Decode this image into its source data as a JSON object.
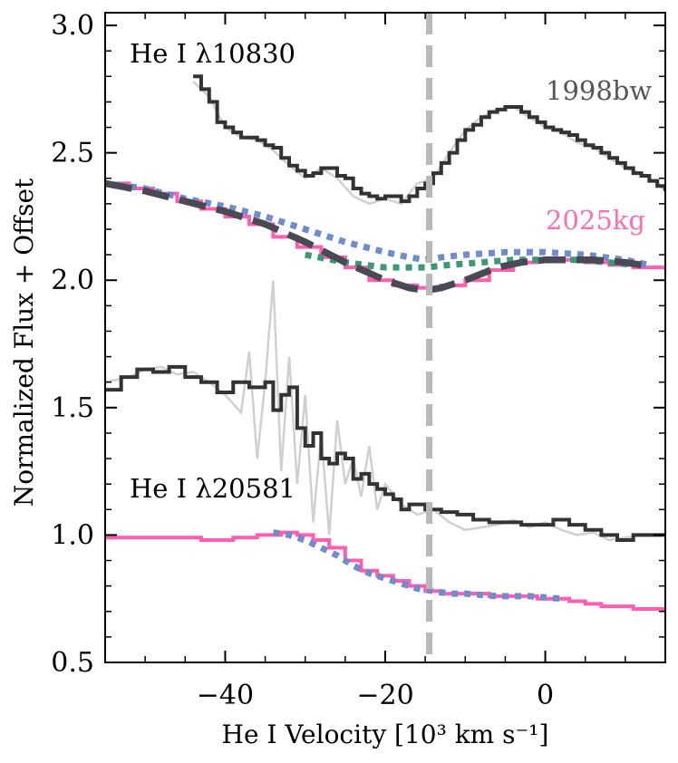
{
  "chart_data": {
    "type": "line",
    "xlabel": "He I Velocity [10³ km s⁻¹]",
    "ylabel": "Normalized Flux + Offset",
    "xlim": [
      -55,
      15
    ],
    "ylim": [
      0.5,
      3.05
    ],
    "x_ticks": [
      -40,
      -20,
      0
    ],
    "x_tick_labels": [
      "−40",
      "−20",
      "0"
    ],
    "y_ticks": [
      0.5,
      1.0,
      1.5,
      2.0,
      2.5,
      3.0
    ],
    "y_tick_labels": [
      "0.5",
      "1.0",
      "1.5",
      "2.0",
      "2.5",
      "3.0"
    ],
    "x_minor_step": 5,
    "y_minor_step": 0.1,
    "vline": {
      "x": -14.5,
      "style": "dashed",
      "color": "#b8b8b8"
    },
    "annotations": [
      {
        "text": "He I λ10830",
        "color": "#000000"
      },
      {
        "text": "1998bw",
        "color": "#555555"
      },
      {
        "text": "2025kg",
        "color": "#ff6eb4"
      },
      {
        "text": "He I λ20581",
        "color": "#000000"
      }
    ],
    "colors": {
      "data": "#333333",
      "raw": "#d0d0d0",
      "model": "#ff5cb2",
      "blue": "#6f8ccc",
      "green": "#3a9a78",
      "dash": "#4a4a55"
    },
    "series": [
      {
        "name": "1998bw λ10830 raw",
        "style": "raw",
        "x": [
          -44,
          -42,
          -40,
          -38,
          -36,
          -34,
          -32,
          -30,
          -28,
          -26,
          -24,
          -22,
          -20,
          -18,
          -16,
          -14,
          -12,
          -10,
          -8,
          -6,
          -4,
          -2,
          0,
          2,
          4,
          6,
          8,
          10,
          12,
          14,
          15
        ],
        "y": [
          2.78,
          2.72,
          2.6,
          2.56,
          2.55,
          2.51,
          2.45,
          2.4,
          2.44,
          2.4,
          2.33,
          2.3,
          2.32,
          2.3,
          2.38,
          2.4,
          2.5,
          2.59,
          2.64,
          2.67,
          2.68,
          2.64,
          2.6,
          2.58,
          2.54,
          2.52,
          2.48,
          2.44,
          2.42,
          2.38,
          2.35
        ]
      },
      {
        "name": "1998bw λ10830",
        "style": "step",
        "x": [
          -44,
          -43,
          -42,
          -41,
          -40,
          -39,
          -38,
          -37,
          -36,
          -35,
          -34,
          -33,
          -32,
          -31,
          -30,
          -29,
          -28,
          -27,
          -26,
          -25,
          -24,
          -23,
          -22,
          -21,
          -20,
          -19,
          -18,
          -17,
          -16,
          -15,
          -14,
          -13,
          -12,
          -11,
          -10,
          -9,
          -8,
          -7,
          -6,
          -5,
          -4,
          -3,
          -2,
          -1,
          0,
          1,
          2,
          3,
          4,
          5,
          6,
          7,
          8,
          9,
          10,
          11,
          12,
          13,
          14,
          15
        ],
        "y": [
          2.8,
          2.75,
          2.7,
          2.62,
          2.6,
          2.58,
          2.56,
          2.56,
          2.55,
          2.53,
          2.52,
          2.48,
          2.45,
          2.43,
          2.41,
          2.42,
          2.44,
          2.44,
          2.41,
          2.4,
          2.36,
          2.34,
          2.33,
          2.32,
          2.33,
          2.33,
          2.31,
          2.33,
          2.36,
          2.38,
          2.42,
          2.46,
          2.5,
          2.55,
          2.59,
          2.61,
          2.64,
          2.66,
          2.67,
          2.68,
          2.68,
          2.66,
          2.64,
          2.62,
          2.6,
          2.59,
          2.58,
          2.57,
          2.55,
          2.53,
          2.52,
          2.5,
          2.48,
          2.46,
          2.44,
          2.42,
          2.41,
          2.39,
          2.37,
          2.35
        ]
      },
      {
        "name": "2025kg λ10830",
        "style": "step",
        "x": [
          -55,
          -52,
          -49,
          -46,
          -43,
          -40,
          -37,
          -34,
          -31,
          -28,
          -25,
          -22,
          -19,
          -16,
          -13,
          -10,
          -7,
          -4,
          -1,
          2,
          5,
          8,
          11,
          15
        ],
        "y": [
          2.38,
          2.36,
          2.34,
          2.31,
          2.28,
          2.25,
          2.22,
          2.17,
          2.13,
          2.09,
          2.05,
          2.0,
          1.98,
          1.97,
          1.98,
          2.0,
          2.04,
          2.07,
          2.08,
          2.08,
          2.07,
          2.06,
          2.05,
          2.04
        ]
      },
      {
        "name": "model blue λ10830",
        "style": "dotted-blue",
        "x": [
          -55,
          -50,
          -45,
          -40,
          -35,
          -30,
          -25,
          -20,
          -17,
          -15,
          -13,
          -10,
          -5,
          0,
          5,
          10,
          13
        ],
        "y": [
          2.38,
          2.36,
          2.32,
          2.29,
          2.25,
          2.2,
          2.15,
          2.11,
          2.09,
          2.08,
          2.09,
          2.1,
          2.11,
          2.11,
          2.1,
          2.08,
          2.06
        ]
      },
      {
        "name": "model green λ10830",
        "style": "dotted-green",
        "x": [
          -30,
          -25,
          -20,
          -17,
          -15,
          -12,
          -8,
          -4,
          0,
          4,
          8,
          11
        ],
        "y": [
          2.1,
          2.07,
          2.05,
          2.05,
          2.05,
          2.06,
          2.07,
          2.08,
          2.08,
          2.08,
          2.07,
          2.06
        ]
      },
      {
        "name": "composite model λ10830",
        "style": "dashed",
        "x": [
          -55,
          -50,
          -45,
          -40,
          -35,
          -30,
          -25,
          -20,
          -17,
          -15,
          -13,
          -10,
          -6,
          -3,
          0,
          3,
          6,
          10,
          12
        ],
        "y": [
          2.38,
          2.35,
          2.31,
          2.27,
          2.22,
          2.15,
          2.07,
          2.0,
          1.97,
          1.96,
          1.97,
          2.0,
          2.05,
          2.07,
          2.08,
          2.08,
          2.08,
          2.07,
          2.06
        ]
      },
      {
        "name": "1998bw λ20581 raw",
        "style": "raw",
        "x": [
          -55,
          -52,
          -50,
          -48,
          -46,
          -44,
          -42,
          -40,
          -38,
          -37,
          -36,
          -35,
          -34,
          -33,
          -32,
          -31,
          -30,
          -29,
          -28,
          -27,
          -26,
          -25,
          -24,
          -23,
          -22,
          -21,
          -20,
          -18,
          -16,
          -14,
          -12,
          -10,
          -8,
          -6,
          -4,
          -2,
          0,
          2,
          4,
          6,
          8,
          10,
          12,
          14,
          15
        ],
        "y": [
          1.6,
          1.62,
          1.65,
          1.66,
          1.63,
          1.64,
          1.6,
          1.55,
          1.48,
          1.72,
          1.3,
          1.6,
          2.0,
          1.25,
          1.7,
          1.2,
          1.55,
          1.05,
          1.4,
          1.0,
          1.45,
          1.2,
          1.3,
          1.15,
          1.35,
          1.1,
          1.2,
          1.12,
          1.08,
          1.1,
          1.05,
          1.02,
          1.03,
          1.04,
          1.06,
          1.03,
          1.05,
          1.02,
          1.0,
          1.01,
          0.98,
          0.99,
          1.0,
          1.0,
          1.0
        ]
      },
      {
        "name": "1998bw λ20581",
        "style": "step",
        "x": [
          -55,
          -53,
          -51,
          -49,
          -47,
          -45,
          -43,
          -41,
          -39,
          -37,
          -35,
          -34,
          -33,
          -32,
          -31,
          -30,
          -29,
          -28,
          -27,
          -26,
          -25,
          -24,
          -23,
          -22,
          -21,
          -20,
          -19,
          -18,
          -17,
          -15,
          -13,
          -11,
          -9,
          -7,
          -5,
          -3,
          -1,
          1,
          3,
          5,
          7,
          9,
          11,
          13,
          15
        ],
        "y": [
          1.57,
          1.62,
          1.65,
          1.64,
          1.66,
          1.62,
          1.6,
          1.56,
          1.6,
          1.58,
          1.6,
          1.49,
          1.55,
          1.58,
          1.42,
          1.35,
          1.4,
          1.3,
          1.28,
          1.32,
          1.3,
          1.22,
          1.24,
          1.2,
          1.18,
          1.16,
          1.14,
          1.1,
          1.12,
          1.1,
          1.09,
          1.08,
          1.06,
          1.05,
          1.05,
          1.04,
          1.04,
          1.06,
          1.04,
          1.02,
          1.0,
          0.98,
          1.0,
          1.0,
          1.0
        ]
      },
      {
        "name": "2025kg λ20581",
        "style": "step",
        "x": [
          -55,
          -51,
          -47,
          -43,
          -39,
          -36,
          -33,
          -31,
          -29,
          -27,
          -25,
          -23,
          -21,
          -19,
          -17,
          -15,
          -13,
          -11,
          -9,
          -7,
          -5,
          -3,
          -1,
          1,
          3,
          5,
          7,
          9,
          11,
          13,
          15
        ],
        "y": [
          0.99,
          0.99,
          0.99,
          0.98,
          0.99,
          1.0,
          1.01,
          1.0,
          0.98,
          0.95,
          0.9,
          0.86,
          0.84,
          0.82,
          0.8,
          0.78,
          0.77,
          0.77,
          0.77,
          0.76,
          0.76,
          0.76,
          0.75,
          0.75,
          0.74,
          0.73,
          0.72,
          0.72,
          0.71,
          0.71,
          0.71
        ]
      },
      {
        "name": "model blue λ20581",
        "style": "dotted-blue",
        "x": [
          -34,
          -32,
          -30,
          -28,
          -26,
          -24,
          -22,
          -20,
          -18,
          -16,
          -14,
          -12,
          -10,
          -6,
          -2,
          2
        ],
        "y": [
          1.01,
          1.0,
          0.98,
          0.95,
          0.92,
          0.88,
          0.85,
          0.83,
          0.81,
          0.79,
          0.78,
          0.77,
          0.77,
          0.76,
          0.76,
          0.75
        ]
      }
    ]
  }
}
